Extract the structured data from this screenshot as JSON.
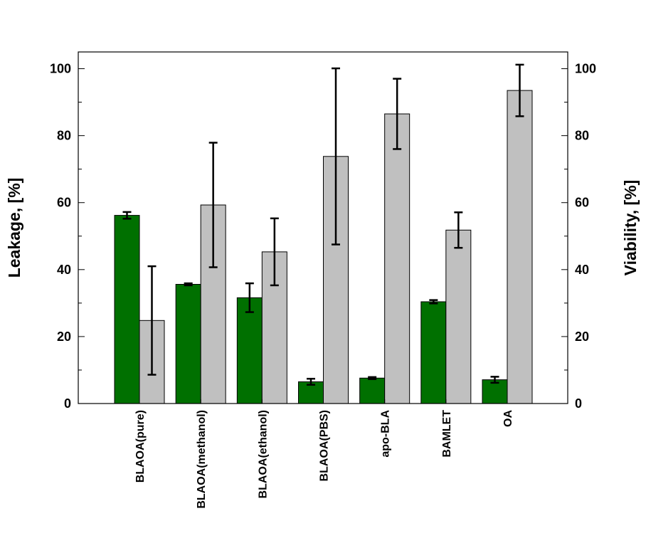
{
  "chart_data": {
    "type": "bar",
    "title": "",
    "categories": [
      "BLAOA(pure)",
      "BLAOA(methanol)",
      "BLAOA(ethanol)",
      "BLAOA(PBS)",
      "apo-BLA",
      "BAMLET",
      "OA"
    ],
    "ylabel": "Leakage, [%]",
    "y2label": "Viability, [%]",
    "ylim": [
      0,
      105
    ],
    "y2lim": [
      0,
      105
    ],
    "yticks": [
      0,
      20,
      40,
      60,
      80,
      100
    ],
    "y2ticks": [
      0,
      20,
      40,
      60,
      80,
      100
    ],
    "grid": false,
    "legend": "none",
    "series": [
      {
        "axis": "left",
        "color": "#007000",
        "values": [
          56.2,
          35.6,
          31.6,
          6.5,
          7.6,
          30.4,
          7.1
        ],
        "err_low": [
          1.0,
          0.3,
          4.3,
          0.9,
          0.3,
          0.5,
          0.9
        ],
        "err_high": [
          1.0,
          0.3,
          4.3,
          0.9,
          0.3,
          0.5,
          0.9
        ]
      },
      {
        "axis": "right",
        "color": "#c0c0c0",
        "values": [
          24.8,
          59.3,
          45.3,
          73.8,
          86.5,
          51.8,
          93.5
        ],
        "err_low": [
          16.2,
          18.6,
          10.0,
          26.3,
          10.5,
          5.3,
          7.7
        ],
        "err_high": [
          16.2,
          18.6,
          10.0,
          26.3,
          10.5,
          5.3,
          7.7
        ]
      }
    ]
  }
}
